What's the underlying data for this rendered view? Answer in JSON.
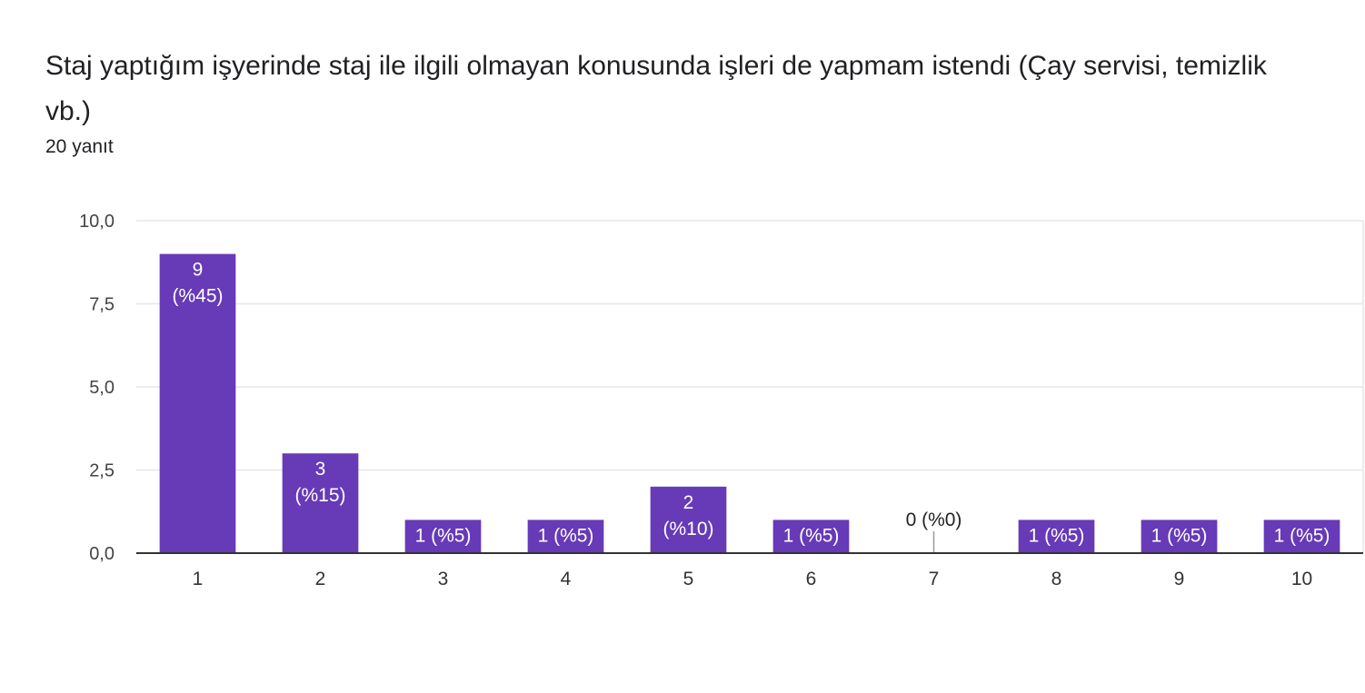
{
  "question": {
    "title": "Staj yaptığım işyerinde staj ile ilgili olmayan konusunda işleri de  yapmam istendi (Çay servisi, temizlik vb.)",
    "responses": "20 yanıt"
  },
  "colors": {
    "bar": "#673ab7",
    "grid": "#e6e6e6",
    "axis": "#333333",
    "label_inside": "#ffffff",
    "label_outside": "#222222"
  },
  "chart_data": {
    "type": "bar",
    "categories": [
      "1",
      "2",
      "3",
      "4",
      "5",
      "6",
      "7",
      "8",
      "9",
      "10"
    ],
    "values": [
      9,
      3,
      1,
      1,
      2,
      1,
      0,
      1,
      1,
      1
    ],
    "data_labels": [
      [
        "9",
        "(%45)"
      ],
      [
        "3",
        "(%15)"
      ],
      [
        "1 (%5)"
      ],
      [
        "1 (%5)"
      ],
      [
        "2",
        "(%10)"
      ],
      [
        "1 (%5)"
      ],
      [
        "0 (%0)"
      ],
      [
        "1 (%5)"
      ],
      [
        "1 (%5)"
      ],
      [
        "1 (%5)"
      ]
    ],
    "yticks": [
      "0,0",
      "2,5",
      "5,0",
      "7,5",
      "10,0"
    ],
    "ytick_values": [
      0,
      2.5,
      5,
      7.5,
      10
    ],
    "ylim": [
      0,
      10
    ],
    "grid": true,
    "title": "Staj yaptığım işyerinde staj ile ilgili olmayan konusunda işleri de  yapmam istendi (Çay servisi, temizlik vb.)",
    "xlabel": "",
    "ylabel": ""
  }
}
